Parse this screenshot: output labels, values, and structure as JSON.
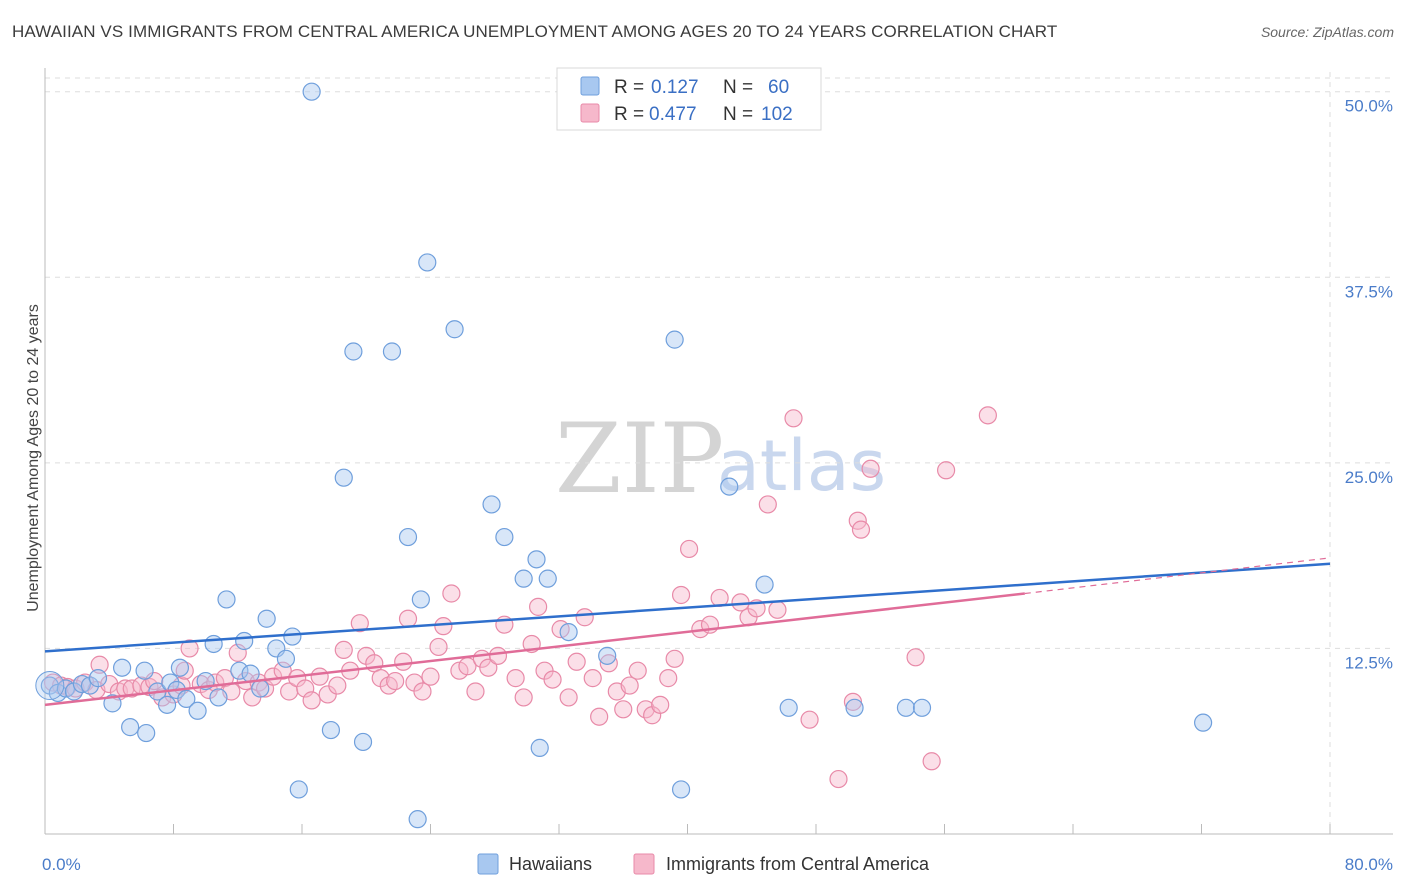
{
  "title": "HAWAIIAN VS IMMIGRANTS FROM CENTRAL AMERICA UNEMPLOYMENT AMONG AGES 20 TO 24 YEARS CORRELATION CHART",
  "source": "Source: ZipAtlas.com",
  "watermark": {
    "part1": "ZIP",
    "part2": "atlas"
  },
  "colors": {
    "hawaiians_fill": "#a8c8f0",
    "hawaiians_stroke": "#6f9fdc",
    "hawaiians_line": "#2f6fcc",
    "immigrants_fill": "#f6b8cb",
    "immigrants_stroke": "#e88aa8",
    "immigrants_line": "#e06c98",
    "grid": "#dddddd",
    "tick_label": "#4a7cc9"
  },
  "legend": {
    "rows": [
      {
        "r_label": "R =",
        "r_value": "0.127",
        "n_label": "N =",
        "n_value": "60"
      },
      {
        "r_label": "R =",
        "r_value": "0.477",
        "n_label": "N =",
        "n_value": "102"
      }
    ]
  },
  "chart_data": {
    "type": "scatter",
    "title": "HAWAIIAN VS IMMIGRANTS FROM CENTRAL AMERICA UNEMPLOYMENT AMONG AGES 20 TO 24 YEARS CORRELATION CHART",
    "xlabel": "",
    "ylabel": "Unemployment Among Ages 20 to 24 years",
    "xlim": [
      0,
      80
    ],
    "ylim": [
      0,
      52
    ],
    "x_tick_labels": [
      "0.0%",
      "80.0%"
    ],
    "y_ticks": [
      12.5,
      25.0,
      37.5,
      50.0
    ],
    "y_tick_labels": [
      "12.5%",
      "25.0%",
      "37.5%",
      "50.0%"
    ],
    "grid": true,
    "legend_position": "top-center",
    "series": [
      {
        "name": "Hawaiians",
        "trend": {
          "x": [
            0,
            80
          ],
          "y": [
            12.3,
            18.2
          ]
        },
        "points": [
          [
            0.3,
            10.0
          ],
          [
            0.8,
            9.5
          ],
          [
            1.3,
            9.8
          ],
          [
            1.8,
            9.6
          ],
          [
            2.3,
            10.1
          ],
          [
            2.8,
            10.0
          ],
          [
            3.3,
            10.5
          ],
          [
            4.2,
            8.8
          ],
          [
            4.8,
            11.2
          ],
          [
            5.3,
            7.2
          ],
          [
            6.2,
            11.0
          ],
          [
            6.3,
            6.8
          ],
          [
            7.0,
            9.6
          ],
          [
            7.6,
            8.7
          ],
          [
            7.8,
            10.2
          ],
          [
            8.2,
            9.7
          ],
          [
            8.4,
            11.2
          ],
          [
            8.8,
            9.1
          ],
          [
            9.5,
            8.3
          ],
          [
            10.0,
            10.3
          ],
          [
            10.5,
            12.8
          ],
          [
            10.8,
            9.2
          ],
          [
            11.3,
            15.8
          ],
          [
            12.1,
            11.0
          ],
          [
            12.4,
            13.0
          ],
          [
            12.8,
            10.8
          ],
          [
            13.4,
            9.8
          ],
          [
            13.8,
            14.5
          ],
          [
            14.4,
            12.5
          ],
          [
            15.0,
            11.8
          ],
          [
            15.4,
            13.3
          ],
          [
            15.8,
            3.0
          ],
          [
            16.6,
            50.0
          ],
          [
            17.8,
            7.0
          ],
          [
            18.6,
            24.0
          ],
          [
            19.2,
            32.5
          ],
          [
            19.8,
            6.2
          ],
          [
            21.6,
            32.5
          ],
          [
            22.6,
            20.0
          ],
          [
            23.2,
            1.0
          ],
          [
            23.4,
            15.8
          ],
          [
            23.8,
            38.5
          ],
          [
            25.5,
            34.0
          ],
          [
            27.8,
            22.2
          ],
          [
            28.6,
            20.0
          ],
          [
            29.8,
            17.2
          ],
          [
            30.6,
            18.5
          ],
          [
            30.8,
            5.8
          ],
          [
            31.3,
            17.2
          ],
          [
            32.6,
            13.6
          ],
          [
            35.0,
            12.0
          ],
          [
            39.2,
            33.3
          ],
          [
            39.6,
            3.0
          ],
          [
            42.6,
            23.4
          ],
          [
            44.8,
            16.8
          ],
          [
            46.3,
            8.5
          ],
          [
            50.4,
            8.5
          ],
          [
            53.6,
            8.5
          ],
          [
            54.6,
            8.5
          ],
          [
            72.1,
            7.5
          ]
        ]
      },
      {
        "name": "Immigrants from Central America",
        "trend": {
          "x": [
            0,
            61
          ],
          "y": [
            8.7,
            16.2
          ]
        },
        "trend_extension": {
          "x": [
            61,
            80
          ],
          "y": [
            16.2,
            18.6
          ]
        },
        "points": [
          [
            0.5,
            10.2
          ],
          [
            1.0,
            10.0
          ],
          [
            1.4,
            9.9
          ],
          [
            1.9,
            9.8
          ],
          [
            2.5,
            10.2
          ],
          [
            3.2,
            9.7
          ],
          [
            3.4,
            11.4
          ],
          [
            4.0,
            10.1
          ],
          [
            4.6,
            9.6
          ],
          [
            5.0,
            9.8
          ],
          [
            5.4,
            9.8
          ],
          [
            6.0,
            10.0
          ],
          [
            6.5,
            9.9
          ],
          [
            6.8,
            10.3
          ],
          [
            7.3,
            9.2
          ],
          [
            8.0,
            9.4
          ],
          [
            8.5,
            10.0
          ],
          [
            8.7,
            11.0
          ],
          [
            9.0,
            12.5
          ],
          [
            9.7,
            10.1
          ],
          [
            10.2,
            9.7
          ],
          [
            10.6,
            10.2
          ],
          [
            11.2,
            10.5
          ],
          [
            11.6,
            9.6
          ],
          [
            12.0,
            12.2
          ],
          [
            12.5,
            10.3
          ],
          [
            12.9,
            9.2
          ],
          [
            13.3,
            10.2
          ],
          [
            13.7,
            9.8
          ],
          [
            14.2,
            10.6
          ],
          [
            14.8,
            11.0
          ],
          [
            15.2,
            9.6
          ],
          [
            15.7,
            10.5
          ],
          [
            16.2,
            9.8
          ],
          [
            16.6,
            9.0
          ],
          [
            17.1,
            10.6
          ],
          [
            17.6,
            9.4
          ],
          [
            18.2,
            10.0
          ],
          [
            18.6,
            12.4
          ],
          [
            19.0,
            11.0
          ],
          [
            19.6,
            14.2
          ],
          [
            20.0,
            12.0
          ],
          [
            20.5,
            11.5
          ],
          [
            20.9,
            10.5
          ],
          [
            21.4,
            10.0
          ],
          [
            21.8,
            10.3
          ],
          [
            22.3,
            11.6
          ],
          [
            22.6,
            14.5
          ],
          [
            23.0,
            10.2
          ],
          [
            23.5,
            9.6
          ],
          [
            24.0,
            10.6
          ],
          [
            24.5,
            12.6
          ],
          [
            24.8,
            14.0
          ],
          [
            25.3,
            16.2
          ],
          [
            25.8,
            11.0
          ],
          [
            26.3,
            11.3
          ],
          [
            26.8,
            9.6
          ],
          [
            27.2,
            11.8
          ],
          [
            27.6,
            11.2
          ],
          [
            28.2,
            12.0
          ],
          [
            28.6,
            14.1
          ],
          [
            29.3,
            10.5
          ],
          [
            29.8,
            9.2
          ],
          [
            30.3,
            12.8
          ],
          [
            30.7,
            15.3
          ],
          [
            31.1,
            11.0
          ],
          [
            31.6,
            10.4
          ],
          [
            32.1,
            13.8
          ],
          [
            32.6,
            9.2
          ],
          [
            33.1,
            11.6
          ],
          [
            33.6,
            14.6
          ],
          [
            34.1,
            10.5
          ],
          [
            34.5,
            7.9
          ],
          [
            35.1,
            11.5
          ],
          [
            35.6,
            9.6
          ],
          [
            36.0,
            8.4
          ],
          [
            36.4,
            10.0
          ],
          [
            36.9,
            11.0
          ],
          [
            37.4,
            8.4
          ],
          [
            37.8,
            8.0
          ],
          [
            38.3,
            8.7
          ],
          [
            38.8,
            10.5
          ],
          [
            39.2,
            11.8
          ],
          [
            39.6,
            16.1
          ],
          [
            40.1,
            19.2
          ],
          [
            40.8,
            13.8
          ],
          [
            41.4,
            14.1
          ],
          [
            42.0,
            15.9
          ],
          [
            43.3,
            15.6
          ],
          [
            43.8,
            14.6
          ],
          [
            44.3,
            15.2
          ],
          [
            45.0,
            22.2
          ],
          [
            45.6,
            15.1
          ],
          [
            46.6,
            28.0
          ],
          [
            47.6,
            7.7
          ],
          [
            49.4,
            3.7
          ],
          [
            50.3,
            8.9
          ],
          [
            50.6,
            21.1
          ],
          [
            50.8,
            20.5
          ],
          [
            51.4,
            24.6
          ],
          [
            54.2,
            11.9
          ],
          [
            55.2,
            4.9
          ],
          [
            56.1,
            24.5
          ],
          [
            58.7,
            28.2
          ]
        ]
      }
    ]
  },
  "bottom_legend": {
    "items": [
      {
        "label": "Hawaiians"
      },
      {
        "label": "Immigrants from Central America"
      }
    ]
  }
}
